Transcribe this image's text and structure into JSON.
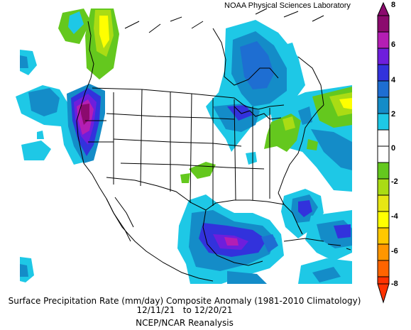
{
  "map": {
    "credit": "NOAA Physical Sciences Laboratory",
    "caption_line1": "Surface Precipitation Rate (mm/day) Composite Anomaly (1981-2010 Climatology)",
    "caption_line2": "12/11/21   to 12/20/21",
    "caption_line3": "NCEP/NCAR Reanalysis",
    "region": "North America"
  },
  "colorbar": {
    "ticks": [
      "8",
      "6",
      "4",
      "2",
      "0",
      "-2",
      "-4",
      "-6",
      "-8"
    ],
    "colors": [
      "#8b0a6e",
      "#b41eb4",
      "#6e1edc",
      "#3232dc",
      "#1e6ed2",
      "#148cc8",
      "#1ec8e6",
      "#ffffff",
      "#ffffff",
      "#64c81e",
      "#aadc14",
      "#e6e614",
      "#ffff00",
      "#ffc800",
      "#ff9600",
      "#ff6400",
      "#ff3200"
    ]
  }
}
